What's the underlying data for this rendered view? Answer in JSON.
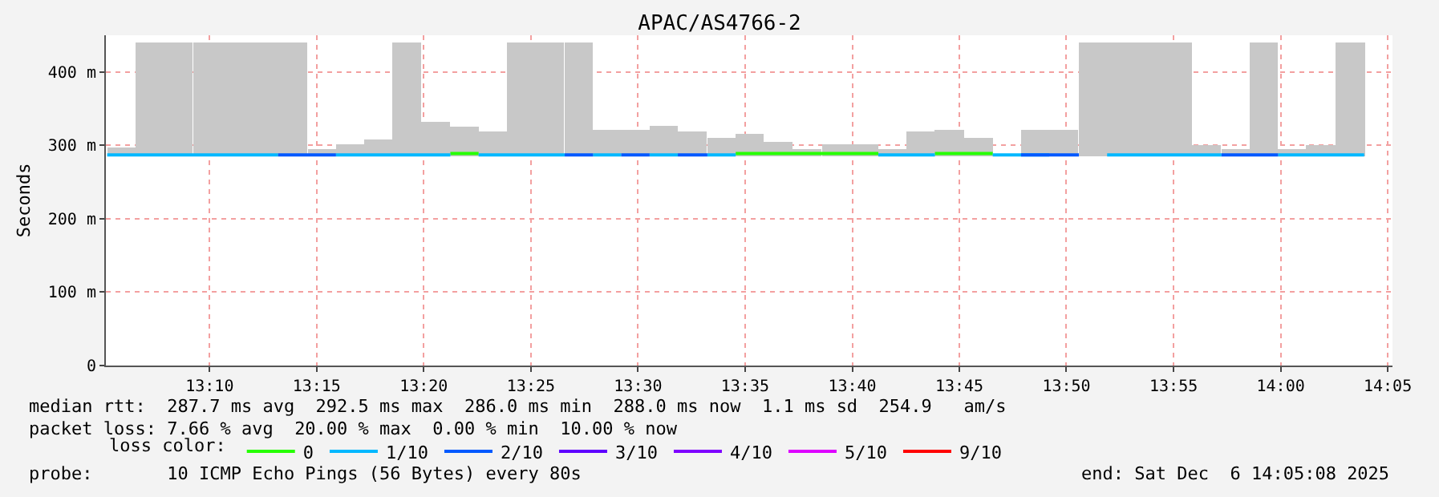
{
  "chart_data": {
    "type": "step",
    "title": "APAC/AS4766-2",
    "ylabel": "Seconds",
    "legend_title": "loss color:",
    "legend": "bottom left",
    "grid": true,
    "line_style": "solid",
    "marker": "none",
    "xlim": [
      13.086,
      14.087
    ],
    "xticks": [
      {
        "value": 13.1667,
        "label": "13:10"
      },
      {
        "value": 13.25,
        "label": "13:15"
      },
      {
        "value": 13.3333,
        "label": "13:20"
      },
      {
        "value": 13.4167,
        "label": "13:25"
      },
      {
        "value": 13.5,
        "label": "13:30"
      },
      {
        "value": 13.5833,
        "label": "13:35"
      },
      {
        "value": 13.6667,
        "label": "13:40"
      },
      {
        "value": 13.75,
        "label": "13:45"
      },
      {
        "value": 13.8333,
        "label": "13:50"
      },
      {
        "value": 13.9167,
        "label": "13:55"
      },
      {
        "value": 14,
        "label": "14:00"
      },
      {
        "value": 14.0833,
        "label": "14:05"
      }
    ],
    "ylim": [
      0,
      450
    ],
    "yticks": [
      0,
      {
        "value": 100,
        "label": "100 m"
      },
      {
        "value": 200,
        "label": "200 m"
      },
      {
        "value": 300,
        "label": "300 m"
      },
      {
        "value": 400,
        "label": "400 m"
      }
    ],
    "series": [
      {
        "type": "bar",
        "color": "#c8c8c8",
        "x": [
          13.098,
          13.12,
          13.142,
          13.165,
          13.187,
          13.209,
          13.231,
          13.254,
          13.276,
          13.298,
          13.32,
          13.342,
          13.365,
          13.387,
          13.409,
          13.431,
          13.454,
          13.476,
          13.498,
          13.52,
          13.542,
          13.565,
          13.587,
          13.609,
          13.631,
          13.654,
          13.676,
          13.698,
          13.72,
          13.742,
          13.765,
          13.787,
          13.809,
          13.831,
          13.854,
          13.876,
          13.898,
          13.92,
          13.942,
          13.965,
          13.987,
          14.009,
          14.031,
          14.054
        ],
        "base": [
          285,
          285,
          285,
          285,
          285,
          285,
          285,
          285,
          285,
          285,
          285,
          285,
          285,
          285,
          285,
          285,
          285,
          285,
          285,
          285,
          285,
          285,
          285,
          285,
          285,
          285,
          285,
          285,
          285,
          285,
          285,
          null,
          285,
          285,
          285,
          285,
          285,
          285,
          285,
          285,
          285,
          285,
          285,
          285
        ],
        "values": [
          12,
          155,
          155,
          155,
          155,
          155,
          155,
          10,
          16,
          23,
          155,
          47,
          40,
          34,
          155,
          155,
          155,
          36,
          36,
          42,
          34,
          25,
          31,
          20,
          10,
          17,
          17,
          10,
          34,
          36,
          25,
          null,
          36,
          36,
          155,
          155,
          155,
          155,
          15,
          10,
          155,
          10,
          15,
          155
        ]
      },
      {
        "name": "0",
        "color": "#26ff00",
        "x": [
          13.354,
          13.376,
          null,
          13.576,
          13.598,
          13.62,
          13.643,
          13.665,
          13.687,
          null,
          13.731,
          13.754,
          13.776
        ],
        "values": [
          289,
          289,
          null,
          289,
          289,
          289,
          289,
          289,
          289,
          null,
          289,
          289,
          289
        ]
      },
      {
        "name": "1/10",
        "color": "#00b8ff",
        "x": [
          13.087,
          13.109,
          13.131,
          13.154,
          13.176,
          13.198,
          13.22,
          null,
          13.265,
          13.287,
          13.309,
          13.331,
          13.354,
          null,
          13.376,
          13.398,
          13.42,
          13.443,
          null,
          13.465,
          13.487,
          null,
          13.509,
          13.531,
          null,
          13.554,
          13.576,
          null,
          13.687,
          13.709,
          13.731,
          null,
          13.776,
          13.798,
          13.82,
          null,
          13.865,
          13.887,
          13.909,
          13.931,
          13.954,
          null,
          13.998,
          14.02,
          14.043,
          14.065
        ],
        "values": [
          287,
          287,
          287,
          287,
          287,
          287,
          287,
          null,
          287,
          287,
          287,
          287,
          287,
          null,
          287,
          287,
          287,
          287,
          null,
          287,
          287,
          null,
          287,
          287,
          null,
          287,
          287,
          null,
          287,
          287,
          287,
          null,
          287,
          287,
          287,
          null,
          287,
          287,
          287,
          287,
          287,
          null,
          287,
          287,
          287,
          287
        ]
      },
      {
        "name": "2/10",
        "color": "#0059ff",
        "x": [
          13.22,
          13.243,
          13.265,
          null,
          13.443,
          13.465,
          null,
          13.487,
          13.509,
          null,
          13.531,
          13.554,
          null,
          13.798,
          13.82,
          13.843,
          null,
          13.954,
          13.976,
          13.998
        ],
        "values": [
          287,
          287,
          287,
          null,
          287,
          287,
          null,
          287,
          287,
          null,
          287,
          287,
          null,
          287,
          287,
          287,
          null,
          287,
          287,
          287
        ]
      },
      {
        "name": "3/10",
        "color": "#5e00ff"
      },
      {
        "name": "4/10",
        "color": "#7e00ff"
      },
      {
        "name": "5/10",
        "color": "#dd00ff"
      },
      {
        "name": "9/10",
        "color": "#ff0000"
      }
    ],
    "annotations": [
      "median rtt:  287.7 ms avg  292.5 ms max  286.0 ms min  288.0 ms now  1.1 ms sd  254.9   am/s",
      "packet loss: 7.66 % avg  20.00 % max  0.00 % min  10.00 % now",
      "probe:       10 ICMP Echo Pings (56 Bytes) every 80s",
      "end: Sat Dec  6 14:05:08 2025"
    ]
  }
}
